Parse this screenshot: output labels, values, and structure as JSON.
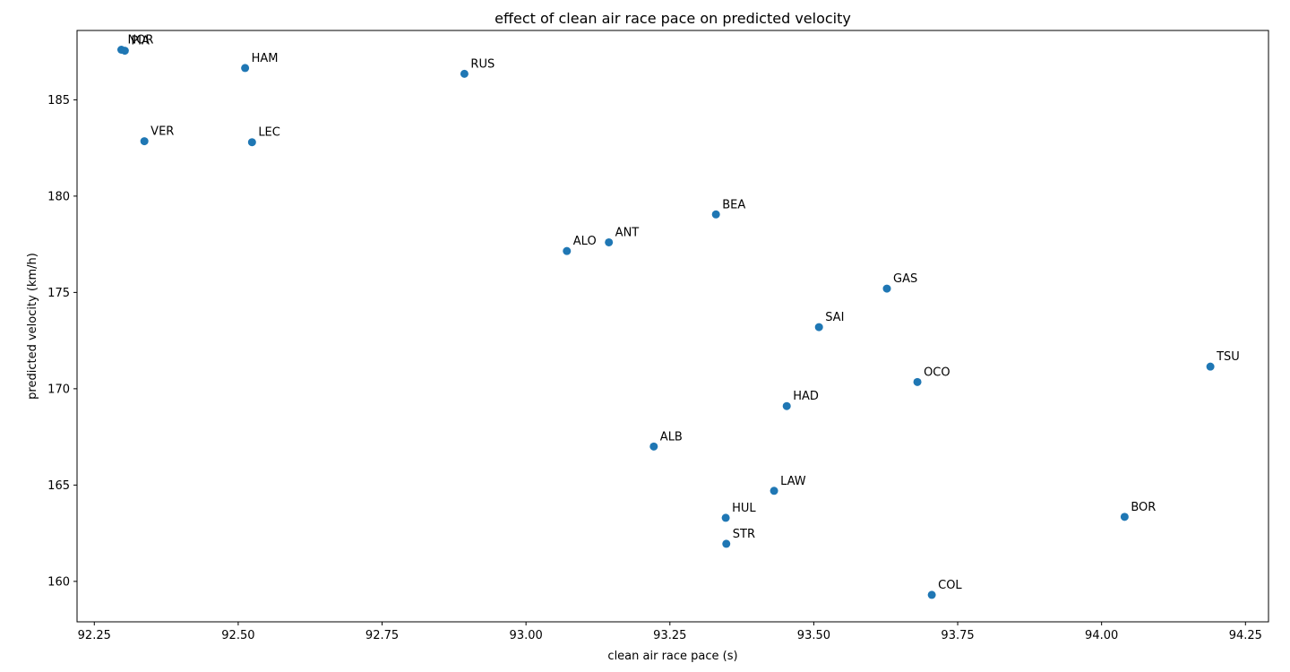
{
  "chart_data": {
    "type": "scatter",
    "title": "effect of clean air race pace on predicted velocity",
    "xlabel": "clean air race pace (s)",
    "ylabel": "predicted velocity (km/h)",
    "xlim": [
      92.22,
      94.29
    ],
    "ylim": [
      157.9,
      188.6
    ],
    "xticks": [
      "92.25",
      "92.50",
      "92.75",
      "93.00",
      "93.25",
      "93.50",
      "93.75",
      "94.00",
      "94.25"
    ],
    "yticks": [
      "160",
      "165",
      "170",
      "175",
      "180",
      "185"
    ],
    "grid": false,
    "marker_color": "#1f77b4",
    "points": [
      {
        "label": "NOR",
        "x": 92.297,
        "y": 187.6
      },
      {
        "label": "PIA",
        "x": 92.303,
        "y": 187.55
      },
      {
        "label": "HAM",
        "x": 92.512,
        "y": 186.65
      },
      {
        "label": "RUS",
        "x": 92.893,
        "y": 186.35
      },
      {
        "label": "VER",
        "x": 92.337,
        "y": 182.85
      },
      {
        "label": "LEC",
        "x": 92.524,
        "y": 182.8
      },
      {
        "label": "BEA",
        "x": 93.33,
        "y": 179.05
      },
      {
        "label": "ANT",
        "x": 93.144,
        "y": 177.6
      },
      {
        "label": "ALO",
        "x": 93.071,
        "y": 177.15
      },
      {
        "label": "GAS",
        "x": 93.627,
        "y": 175.2
      },
      {
        "label": "SAI",
        "x": 93.509,
        "y": 173.2
      },
      {
        "label": "TSU",
        "x": 94.189,
        "y": 171.15
      },
      {
        "label": "OCO",
        "x": 93.68,
        "y": 170.35
      },
      {
        "label": "HAD",
        "x": 93.453,
        "y": 169.1
      },
      {
        "label": "ALB",
        "x": 93.222,
        "y": 167.0
      },
      {
        "label": "LAW",
        "x": 93.431,
        "y": 164.7
      },
      {
        "label": "HUL",
        "x": 93.347,
        "y": 163.3
      },
      {
        "label": "BOR",
        "x": 94.04,
        "y": 163.35
      },
      {
        "label": "STR",
        "x": 93.348,
        "y": 161.95
      },
      {
        "label": "COL",
        "x": 93.705,
        "y": 159.3
      }
    ]
  }
}
